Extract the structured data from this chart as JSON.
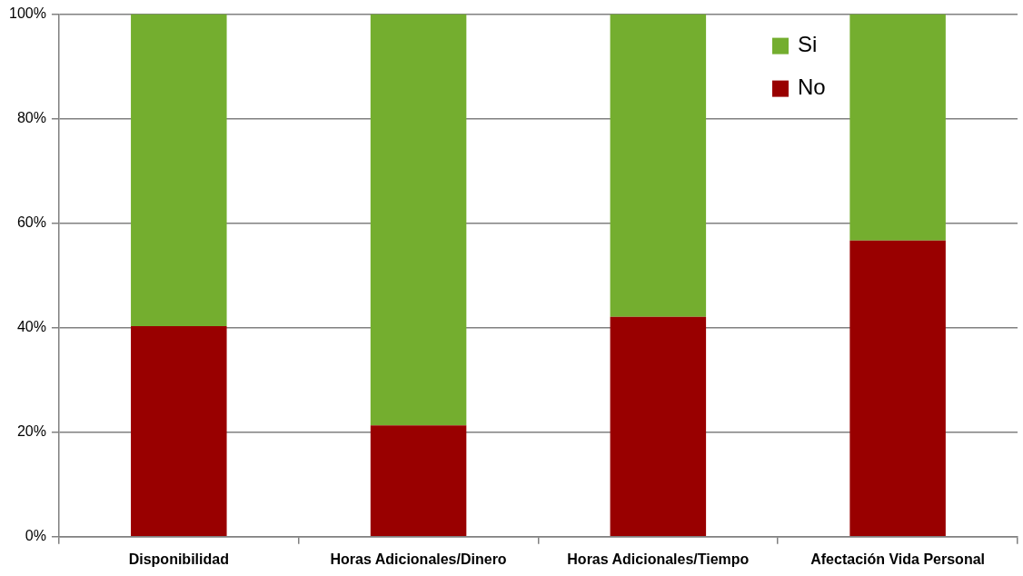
{
  "chart_data": {
    "type": "bar",
    "stacked": true,
    "categories": [
      "Disponibilidad",
      "Horas Adicionales/Dinero",
      "Horas Adicionales/Tiempo",
      "Afectación Vida Personal"
    ],
    "series": [
      {
        "name": "No",
        "color": "#990000",
        "values": [
          40.3,
          21.3,
          42.1,
          56.7
        ]
      },
      {
        "name": "Si",
        "color": "#74ae2f",
        "values": [
          59.7,
          78.7,
          57.9,
          43.3
        ]
      }
    ],
    "ylim": [
      0,
      100
    ],
    "yticks": [
      {
        "value": 0,
        "label": "0%"
      },
      {
        "value": 20,
        "label": "20%"
      },
      {
        "value": 40,
        "label": "40%"
      },
      {
        "value": 60,
        "label": "60%"
      },
      {
        "value": 80,
        "label": "80%"
      },
      {
        "value": 100,
        "label": "100%"
      }
    ],
    "grid": "y",
    "legend": "top right"
  }
}
